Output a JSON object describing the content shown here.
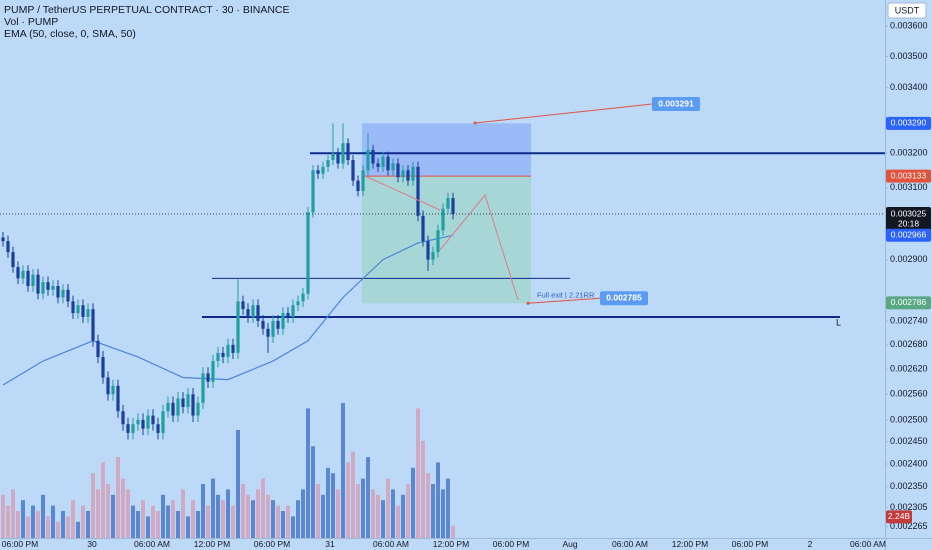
{
  "header": {
    "symbol": "PUMP / TetherUS PERPETUAL CONTRACT · 30 · BINANCE",
    "volume": "Vol · PUMP",
    "indicator": "EMA (50, close, 0, SMA, 50)"
  },
  "chart_data": {
    "type": "candlestick",
    "log_scale": true,
    "grid": false,
    "currency": "USDT",
    "up_color": "#1e9fa0",
    "down_color": "#1c3f9e",
    "volume_up_color": "#4a78c9",
    "volume_down_color": "#d2a1b8",
    "ema_color": "#4a86d8",
    "ylim": [
      0.002241,
      0.003688
    ],
    "yticks": [
      {
        "value": 0.0036,
        "label": "0.003600"
      },
      {
        "value": 0.0035,
        "label": "0.003500"
      },
      {
        "value": 0.0034,
        "label": "0.003400"
      },
      {
        "value": 0.0032,
        "label": "0.003200"
      },
      {
        "value": 0.0031,
        "label": "0.003100"
      },
      {
        "value": 0.0029,
        "label": "0.002900"
      },
      {
        "value": 0.00274,
        "label": "0.002740"
      },
      {
        "value": 0.00268,
        "label": "0.002680"
      },
      {
        "value": 0.00262,
        "label": "0.002620"
      },
      {
        "value": 0.00256,
        "label": "0.002560"
      },
      {
        "value": 0.0025,
        "label": "0.002500"
      },
      {
        "value": 0.00245,
        "label": "0.002450"
      },
      {
        "value": 0.0024,
        "label": "0.002400"
      },
      {
        "value": 0.00235,
        "label": "0.002350"
      },
      {
        "value": 0.002305,
        "label": "0.002305"
      },
      {
        "value": 0.002265,
        "label": "0.002265"
      }
    ],
    "xticks": [
      {
        "value": 3.4,
        "label": "06:00 PM"
      },
      {
        "value": 17.8,
        "label": "30"
      },
      {
        "value": 29.8,
        "label": "06:00 AM"
      },
      {
        "value": 41.8,
        "label": "12:00 PM"
      },
      {
        "value": 53.8,
        "label": "06:00 PM"
      },
      {
        "value": 65.4,
        "label": "31"
      },
      {
        "value": 77.6,
        "label": "06:00 AM"
      },
      {
        "value": 89.6,
        "label": "12:00 PM"
      },
      {
        "value": 101.6,
        "label": "06:00 PM"
      },
      {
        "value": 113.4,
        "label": "Aug"
      },
      {
        "value": 125.4,
        "label": "06:00 AM"
      },
      {
        "value": 137.4,
        "label": "12:00 PM"
      },
      {
        "value": 149.4,
        "label": "06:00 PM"
      },
      {
        "value": 161.4,
        "label": "2"
      },
      {
        "value": 173,
        "label": "06:00 AM"
      }
    ],
    "ohlc": [
      [
        0.00296,
        0.002975,
        0.002935,
        0.00295
      ],
      [
        0.00295,
        0.002965,
        0.002905,
        0.00292
      ],
      [
        0.00292,
        0.002935,
        0.002865,
        0.00288
      ],
      [
        0.00288,
        0.002895,
        0.002835,
        0.00285
      ],
      [
        0.00285,
        0.002885,
        0.002835,
        0.00287
      ],
      [
        0.00287,
        0.002885,
        0.002815,
        0.00283
      ],
      [
        0.00283,
        0.002875,
        0.002815,
        0.00286
      ],
      [
        0.00286,
        0.002875,
        0.002795,
        0.00281
      ],
      [
        0.00281,
        0.002855,
        0.002795,
        0.00284
      ],
      [
        0.00284,
        0.002855,
        0.002805,
        0.00282
      ],
      [
        0.00282,
        0.002845,
        0.002805,
        0.00283
      ],
      [
        0.00283,
        0.002845,
        0.002785,
        0.0028
      ],
      [
        0.0028,
        0.002835,
        0.002785,
        0.00282
      ],
      [
        0.00282,
        0.002835,
        0.002775,
        0.00279
      ],
      [
        0.00279,
        0.002805,
        0.002745,
        0.00276
      ],
      [
        0.00276,
        0.002795,
        0.002745,
        0.00278
      ],
      [
        0.00278,
        0.002795,
        0.002735,
        0.00275
      ],
      [
        0.00275,
        0.002785,
        0.002735,
        0.00277
      ],
      [
        0.00277,
        0.002785,
        0.002675,
        0.00269
      ],
      [
        0.00269,
        0.002705,
        0.002635,
        0.00265
      ],
      [
        0.00265,
        0.002665,
        0.002585,
        0.0026
      ],
      [
        0.0026,
        0.002615,
        0.002545,
        0.00256
      ],
      [
        0.00256,
        0.002595,
        0.002545,
        0.00258
      ],
      [
        0.00258,
        0.002595,
        0.002505,
        0.00252
      ],
      [
        0.00252,
        0.002535,
        0.002475,
        0.00249
      ],
      [
        0.00249,
        0.002505,
        0.002455,
        0.00247
      ],
      [
        0.00247,
        0.002505,
        0.002455,
        0.00249
      ],
      [
        0.00249,
        0.002515,
        0.002475,
        0.0025
      ],
      [
        0.0025,
        0.002515,
        0.002465,
        0.00248
      ],
      [
        0.00248,
        0.002525,
        0.002465,
        0.00251
      ],
      [
        0.00251,
        0.002525,
        0.002475,
        0.00249
      ],
      [
        0.00249,
        0.002505,
        0.002455,
        0.00247
      ],
      [
        0.00247,
        0.002535,
        0.002455,
        0.00252
      ],
      [
        0.00252,
        0.002555,
        0.002505,
        0.00254
      ],
      [
        0.00254,
        0.002555,
        0.002495,
        0.00251
      ],
      [
        0.00251,
        0.002565,
        0.002495,
        0.00255
      ],
      [
        0.00255,
        0.002565,
        0.002515,
        0.00253
      ],
      [
        0.00253,
        0.002575,
        0.002515,
        0.00256
      ],
      [
        0.00256,
        0.002575,
        0.002495,
        0.00251
      ],
      [
        0.00251,
        0.002555,
        0.002495,
        0.00254
      ],
      [
        0.00254,
        0.002625,
        0.002525,
        0.00261
      ],
      [
        0.00261,
        0.002625,
        0.002575,
        0.00259
      ],
      [
        0.00259,
        0.002655,
        0.002575,
        0.00264
      ],
      [
        0.00264,
        0.002675,
        0.002625,
        0.00266
      ],
      [
        0.00266,
        0.002675,
        0.002635,
        0.00265
      ],
      [
        0.00265,
        0.002695,
        0.002635,
        0.00268
      ],
      [
        0.00268,
        0.002695,
        0.002645,
        0.00266
      ],
      [
        0.00266,
        0.00285,
        0.002645,
        0.00279
      ],
      [
        0.00279,
        0.002805,
        0.002755,
        0.00277
      ],
      [
        0.00277,
        0.002785,
        0.002735,
        0.00275
      ],
      [
        0.00275,
        0.002795,
        0.002735,
        0.00278
      ],
      [
        0.00278,
        0.002795,
        0.002725,
        0.00274
      ],
      [
        0.00274,
        0.002755,
        0.002705,
        0.00272
      ],
      [
        0.00272,
        0.002735,
        0.00266,
        0.0027
      ],
      [
        0.0027,
        0.002755,
        0.002685,
        0.00274
      ],
      [
        0.00274,
        0.002755,
        0.002705,
        0.00272
      ],
      [
        0.00272,
        0.002775,
        0.002705,
        0.00276
      ],
      [
        0.00276,
        0.002775,
        0.002735,
        0.00275
      ],
      [
        0.00275,
        0.002795,
        0.002735,
        0.00278
      ],
      [
        0.00278,
        0.002805,
        0.002765,
        0.00279
      ],
      [
        0.00279,
        0.002825,
        0.002775,
        0.00281
      ],
      [
        0.00281,
        0.003045,
        0.002795,
        0.00303
      ],
      [
        0.00303,
        0.003165,
        0.003015,
        0.00315
      ],
      [
        0.00315,
        0.003165,
        0.003125,
        0.00314
      ],
      [
        0.00314,
        0.003175,
        0.003125,
        0.00316
      ],
      [
        0.00316,
        0.003195,
        0.003145,
        0.00318
      ],
      [
        0.00318,
        0.00329,
        0.003165,
        0.0032
      ],
      [
        0.0032,
        0.003215,
        0.003155,
        0.00317
      ],
      [
        0.00317,
        0.00329,
        0.003155,
        0.00323
      ],
      [
        0.00323,
        0.003245,
        0.003165,
        0.00318
      ],
      [
        0.00318,
        0.003195,
        0.003105,
        0.00312
      ],
      [
        0.00312,
        0.003135,
        0.003075,
        0.00309
      ],
      [
        0.00309,
        0.003165,
        0.003075,
        0.00315
      ],
      [
        0.00315,
        0.00326,
        0.003135,
        0.00321
      ],
      [
        0.00321,
        0.003225,
        0.003155,
        0.00317
      ],
      [
        0.00317,
        0.003185,
        0.003145,
        0.00316
      ],
      [
        0.00316,
        0.003205,
        0.003145,
        0.00319
      ],
      [
        0.00319,
        0.003205,
        0.003135,
        0.00315
      ],
      [
        0.00315,
        0.003185,
        0.003135,
        0.00317
      ],
      [
        0.00317,
        0.003185,
        0.003115,
        0.00313
      ],
      [
        0.00313,
        0.003165,
        0.003115,
        0.00315
      ],
      [
        0.00315,
        0.003165,
        0.003105,
        0.00312
      ],
      [
        0.00312,
        0.003175,
        0.003105,
        0.00316
      ],
      [
        0.00316,
        0.003175,
        0.003005,
        0.00302
      ],
      [
        0.00302,
        0.003035,
        0.002935,
        0.00295
      ],
      [
        0.00295,
        0.002965,
        0.00287,
        0.0029
      ],
      [
        0.0029,
        0.002935,
        0.002885,
        0.00292
      ],
      [
        0.00292,
        0.002995,
        0.002905,
        0.00298
      ],
      [
        0.00298,
        0.003055,
        0.002965,
        0.00304
      ],
      [
        0.00304,
        0.003085,
        0.003025,
        0.00307
      ],
      [
        0.00307,
        0.003085,
        0.00301,
        0.003025
      ]
    ],
    "volume": [
      8,
      6,
      9,
      5,
      7,
      4,
      6,
      5,
      8,
      4,
      6,
      3,
      5,
      4,
      7,
      3,
      6,
      5,
      12,
      9,
      14,
      10,
      8,
      15,
      11,
      9,
      6,
      5,
      7,
      4,
      6,
      5,
      8,
      6,
      7,
      5,
      9,
      4,
      7,
      5,
      10,
      6,
      11,
      8,
      7,
      9,
      6,
      20,
      10,
      8,
      7,
      9,
      11,
      8,
      7,
      6,
      5,
      6,
      4,
      7,
      9,
      24,
      17,
      10,
      8,
      13,
      12,
      9,
      25,
      14,
      16,
      10,
      11,
      15,
      9,
      8,
      7,
      11,
      9,
      6,
      8,
      10,
      13,
      24,
      18,
      12,
      10,
      14,
      9,
      11,
      2.24
    ],
    "volume_tag": {
      "label": "2.24B",
      "color": "#c23b3b"
    },
    "ema": {
      "x": [
        0,
        8,
        18,
        27,
        36,
        45,
        54,
        61,
        68,
        76,
        83,
        90
      ],
      "values": [
        0.002582,
        0.00264,
        0.00269,
        0.00265,
        0.0026,
        0.002595,
        0.00264,
        0.00269,
        0.0028,
        0.0029,
        0.002945,
        0.002966
      ]
    },
    "hlines": [
      {
        "price": 0.0032,
        "from": 61.4,
        "to": 176.4,
        "style": "thick"
      },
      {
        "price": 0.00275,
        "from": 39.8,
        "to": 167.4,
        "style": "thick",
        "text": "L"
      },
      {
        "price": 0.00285,
        "from": 41.8,
        "to": 113.4,
        "style": "thin"
      }
    ],
    "position": {
      "stop": 0.00329,
      "entry": 0.003133,
      "target": 0.002785,
      "from": 71.8,
      "to": 105.6,
      "label": "Full exit | 2.21RR"
    },
    "callouts": [
      {
        "label": "0.003291",
        "price": 0.003291,
        "at": 94.4
      },
      {
        "label": "0.002785",
        "price": 0.002785,
        "at": 105
      }
    ],
    "price_tags": [
      {
        "value": 0.00329,
        "label": "0.003290",
        "color": "#2962ff"
      },
      {
        "value": 0.003133,
        "label": "0.003133",
        "color": "#e0533d"
      },
      {
        "value": 0.003025,
        "label": "0.003025",
        "color": "#131722",
        "sub": "20:18"
      },
      {
        "value": 0.002966,
        "label": "0.002966",
        "color": "#2962ff"
      },
      {
        "value": 0.002786,
        "label": "0.002786",
        "color": "#5aa784"
      }
    ]
  }
}
